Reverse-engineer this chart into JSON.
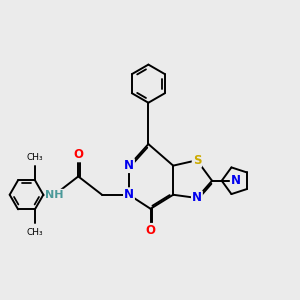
{
  "bg_color": "#ebebeb",
  "bond_color": "#000000",
  "bond_width": 1.4,
  "dbo": 0.055,
  "atom_colors": {
    "N": "#0000ee",
    "O": "#ff0000",
    "S": "#ccaa00",
    "NH": "#4a9999",
    "C": "#000000"
  },
  "fs": 8.5
}
